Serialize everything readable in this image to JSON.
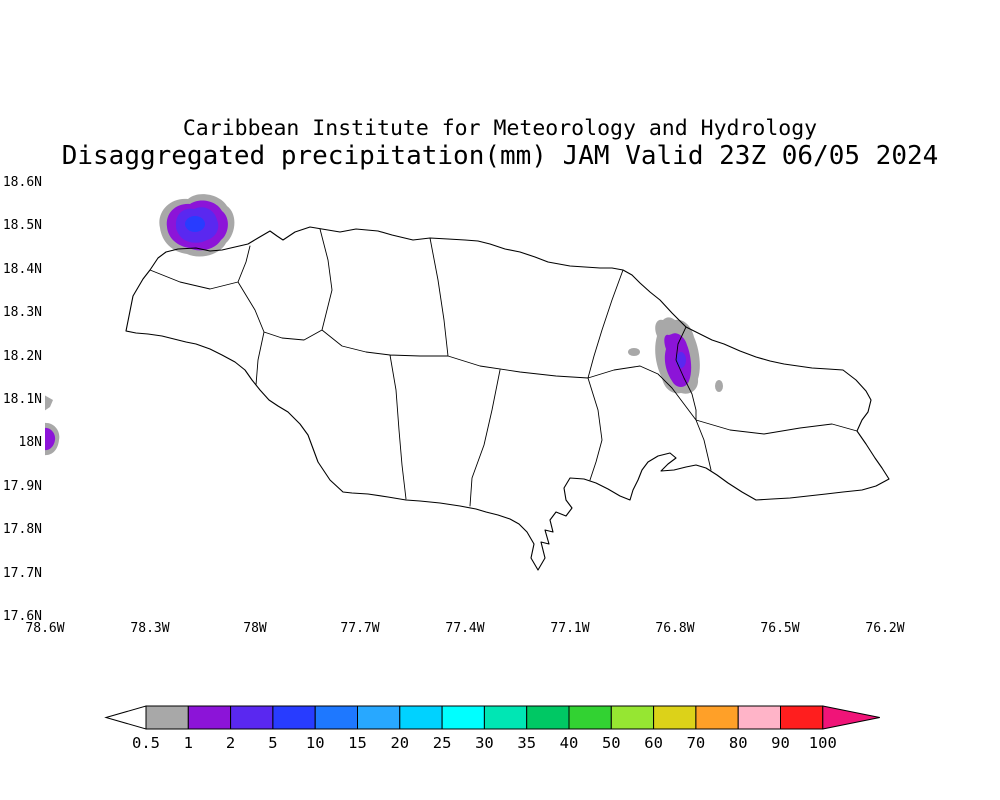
{
  "header": {
    "line1": "Caribbean Institute for Meteorology and Hydrology",
    "line2": "Disaggregated precipitation(mm) JAM Valid 23Z 06/05 2024"
  },
  "axes": {
    "y_ticks": [
      "18.6N",
      "18.5N",
      "18.4N",
      "18.3N",
      "18.2N",
      "18.1N",
      "18N",
      "17.9N",
      "17.8N",
      "17.7N",
      "17.6N"
    ],
    "x_ticks": [
      "78.6W",
      "78.3W",
      "78W",
      "77.7W",
      "77.4W",
      "77.1W",
      "76.8W",
      "76.5W",
      "76.2W"
    ]
  },
  "colorbar": {
    "tick_labels": [
      "0.5",
      "1",
      "2",
      "5",
      "10",
      "15",
      "20",
      "25",
      "30",
      "35",
      "40",
      "50",
      "60",
      "70",
      "80",
      "90",
      "100"
    ],
    "segment_colors": [
      "#a8a8a8",
      "#8c14d8",
      "#5a28f0",
      "#283cff",
      "#1e78ff",
      "#28a8ff",
      "#00d2ff",
      "#00ffff",
      "#00e6b4",
      "#00c864",
      "#32d232",
      "#96e632",
      "#dcd219",
      "#ffa028",
      "#ffb4c8",
      "#ff1e1e"
    ],
    "left_arrow_color": "#ffffff",
    "right_arrow_color": "#f01478",
    "outline_color": "#000000"
  },
  "map": {
    "line_color": "#000000",
    "precip_cells": [
      {
        "name": "northwest-coast-cell",
        "layers_mm": [
          "0.5-1",
          "1-2",
          "2-5",
          "5-10"
        ],
        "colors": [
          "#a8a8a8",
          "#8c14d8",
          "#5a28f0",
          "#283cff"
        ]
      },
      {
        "name": "northeast-portland-cell",
        "layers_mm": [
          "0.5-1",
          "1-2",
          "2-5"
        ],
        "colors": [
          "#a8a8a8",
          "#8c14d8",
          "#5a28f0"
        ]
      },
      {
        "name": "west-edge-cell",
        "layers_mm": [
          "0.5-1",
          "1-2"
        ],
        "colors": [
          "#a8a8a8",
          "#8c14d8"
        ]
      }
    ]
  }
}
